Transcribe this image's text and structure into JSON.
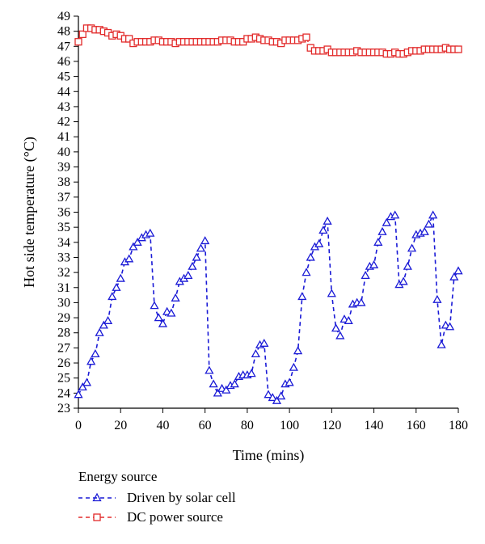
{
  "chart_data": {
    "type": "line",
    "xlabel": "Time (mins)",
    "ylabel": "Hot side temperature (°C)",
    "xlim": [
      0,
      180
    ],
    "ylim": [
      23,
      49
    ],
    "xticks": [
      0,
      20,
      40,
      60,
      80,
      100,
      120,
      140,
      160,
      180
    ],
    "yticks": [
      23,
      24,
      25,
      26,
      27,
      28,
      29,
      30,
      31,
      32,
      33,
      34,
      35,
      36,
      37,
      38,
      39,
      40,
      41,
      42,
      43,
      44,
      45,
      46,
      47,
      48,
      49
    ],
    "grid": false,
    "legend_title": "Energy source",
    "legend_placement": "bottom-left",
    "series": [
      {
        "name": "Driven by solar cell",
        "color": "#1a1ad6",
        "marker": "triangle",
        "line_style": "dashed",
        "x": [
          0,
          2,
          4,
          6,
          8,
          10,
          12,
          14,
          16,
          18,
          20,
          22,
          24,
          26,
          28,
          30,
          32,
          34,
          36,
          38,
          40,
          42,
          44,
          46,
          48,
          50,
          52,
          54,
          56,
          58,
          60,
          62,
          64,
          66,
          68,
          70,
          72,
          74,
          76,
          78,
          80,
          82,
          84,
          86,
          88,
          90,
          92,
          94,
          96,
          98,
          100,
          102,
          104,
          106,
          108,
          110,
          112,
          114,
          116,
          118,
          120,
          122,
          124,
          126,
          128,
          130,
          132,
          134,
          136,
          138,
          140,
          142,
          144,
          146,
          148,
          150,
          152,
          154,
          156,
          158,
          160,
          162,
          164,
          166,
          168,
          170,
          172,
          174,
          176,
          178,
          180
        ],
        "y": [
          23.9,
          24.4,
          24.7,
          26.1,
          26.6,
          28.0,
          28.5,
          28.8,
          30.4,
          31.0,
          31.6,
          32.7,
          32.9,
          33.7,
          34.0,
          34.3,
          34.5,
          34.6,
          29.8,
          29.0,
          28.6,
          29.4,
          29.3,
          30.3,
          31.4,
          31.6,
          31.8,
          32.4,
          33.0,
          33.6,
          34.1,
          25.5,
          24.6,
          24.0,
          24.3,
          24.2,
          24.5,
          24.6,
          25.1,
          25.2,
          25.2,
          25.3,
          26.6,
          27.2,
          27.3,
          23.9,
          23.7,
          23.5,
          23.8,
          24.6,
          24.7,
          25.7,
          26.8,
          30.4,
          32.0,
          33.0,
          33.7,
          33.9,
          34.8,
          35.4,
          30.6,
          28.3,
          27.8,
          28.9,
          28.8,
          29.9,
          30.0,
          30.0,
          31.8,
          32.4,
          32.5,
          34.0,
          34.7,
          35.3,
          35.7,
          35.8,
          31.2,
          31.4,
          32.4,
          33.6,
          34.5,
          34.6,
          34.7,
          35.2,
          35.8,
          30.2,
          27.2,
          28.5,
          28.4,
          31.7,
          32.1
        ]
      },
      {
        "name": "DC power source",
        "color": "#e22b2b",
        "marker": "square",
        "line_style": "dashed",
        "x": [
          0,
          2,
          4,
          6,
          8,
          10,
          12,
          14,
          16,
          18,
          20,
          22,
          24,
          26,
          28,
          30,
          32,
          34,
          36,
          38,
          40,
          42,
          44,
          46,
          48,
          50,
          52,
          54,
          56,
          58,
          60,
          62,
          64,
          66,
          68,
          70,
          72,
          74,
          76,
          78,
          80,
          82,
          84,
          86,
          88,
          90,
          92,
          94,
          96,
          98,
          100,
          102,
          104,
          106,
          108,
          110,
          112,
          114,
          116,
          118,
          120,
          122,
          124,
          126,
          128,
          130,
          132,
          134,
          136,
          138,
          140,
          142,
          144,
          146,
          148,
          150,
          152,
          154,
          156,
          158,
          160,
          162,
          164,
          166,
          168,
          170,
          172,
          174,
          176,
          178,
          180
        ],
        "y": [
          47.3,
          47.8,
          48.2,
          48.2,
          48.1,
          48.1,
          48.0,
          47.9,
          47.7,
          47.8,
          47.7,
          47.5,
          47.5,
          47.2,
          47.3,
          47.3,
          47.3,
          47.3,
          47.4,
          47.4,
          47.3,
          47.3,
          47.3,
          47.2,
          47.3,
          47.3,
          47.3,
          47.3,
          47.3,
          47.3,
          47.3,
          47.3,
          47.3,
          47.3,
          47.4,
          47.4,
          47.4,
          47.3,
          47.3,
          47.3,
          47.5,
          47.5,
          47.6,
          47.5,
          47.4,
          47.4,
          47.3,
          47.3,
          47.2,
          47.4,
          47.4,
          47.4,
          47.4,
          47.5,
          47.6,
          46.9,
          46.7,
          46.7,
          46.7,
          46.8,
          46.6,
          46.6,
          46.6,
          46.6,
          46.6,
          46.6,
          46.7,
          46.6,
          46.6,
          46.6,
          46.6,
          46.6,
          46.6,
          46.5,
          46.5,
          46.6,
          46.5,
          46.5,
          46.6,
          46.7,
          46.7,
          46.7,
          46.8,
          46.8,
          46.8,
          46.8,
          46.8,
          46.9,
          46.8,
          46.8,
          46.8
        ]
      }
    ]
  }
}
